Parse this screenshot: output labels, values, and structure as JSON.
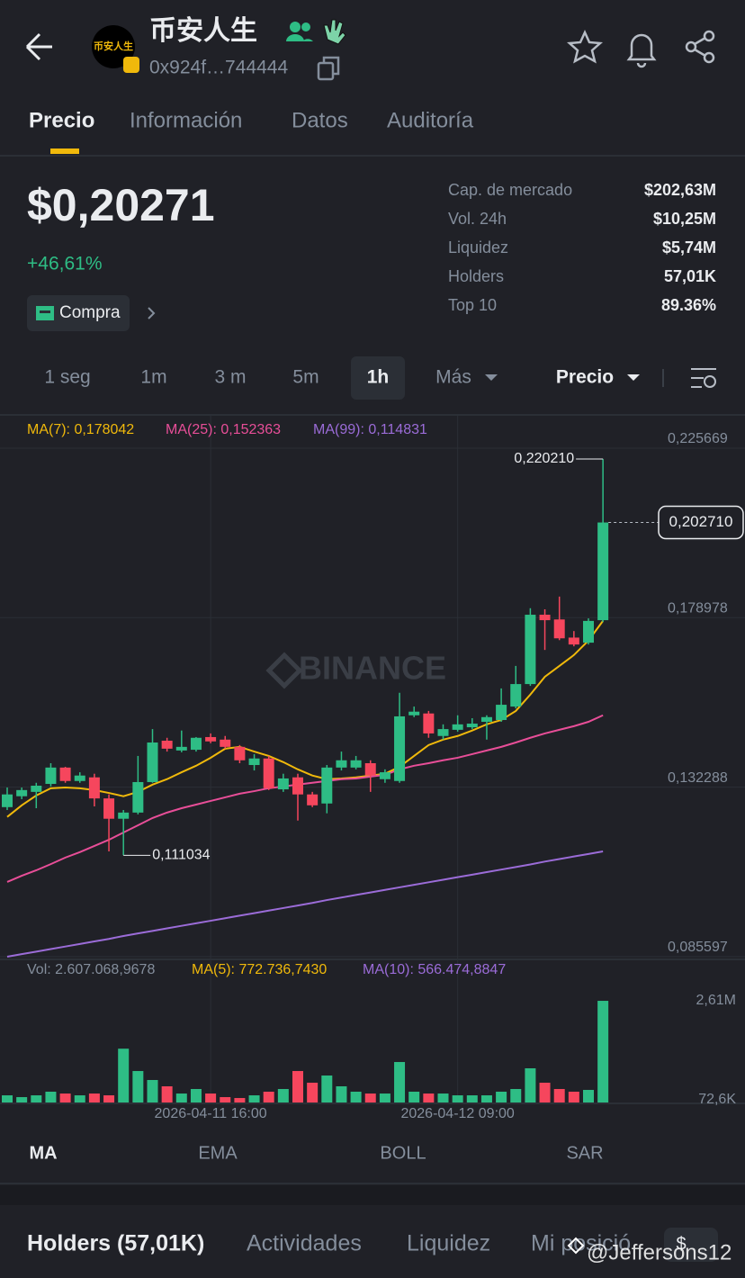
{
  "header": {
    "title": "币安人生",
    "avatar_text": "币安人生",
    "address": "0x924f…744444"
  },
  "tabs": [
    "Precio",
    "Información",
    "Datos",
    "Auditoría"
  ],
  "price": {
    "value": "$0,20271",
    "change": "+46,61%",
    "buy_label": "Compra"
  },
  "stats": [
    [
      "Cap. de mercado",
      "$202,63M"
    ],
    [
      "Vol. 24h",
      "$10,25M"
    ],
    [
      "Liquidez",
      "$5,74M"
    ],
    [
      "Holders",
      "57,01K"
    ],
    [
      "Top 10",
      "89.36%"
    ]
  ],
  "intervals": [
    "1 seg",
    "1m",
    "3 m",
    "5m",
    "1h",
    "Más"
  ],
  "price_selector": "Precio",
  "chart_data": {
    "type": "candlestick",
    "watermark": "BINANCE",
    "categories": [
      null,
      null,
      null,
      null,
      null,
      null,
      null,
      null,
      null,
      null,
      null,
      null,
      null,
      null,
      "2026-04-11 16:00",
      null,
      null,
      null,
      null,
      null,
      null,
      null,
      null,
      null,
      null,
      null,
      null,
      null,
      null,
      null,
      null,
      "2026-04-12 09:00",
      null,
      null,
      null,
      null,
      null,
      null,
      null,
      null,
      null,
      null
    ],
    "open": [
      0.1243,
      0.1273,
      0.1285,
      0.1307,
      0.1352,
      0.1315,
      0.1325,
      0.1267,
      0.1211,
      0.1228,
      0.1312,
      0.1426,
      0.1399,
      0.1401,
      0.1436,
      0.1429,
      0.1409,
      0.1359,
      0.1377,
      0.1292,
      0.1325,
      0.1278,
      0.1253,
      0.1352,
      0.1352,
      0.1364,
      0.132,
      0.1315,
      0.1496,
      0.1501,
      0.1439,
      0.1456,
      0.1463,
      0.1478,
      0.1483,
      0.152,
      0.1582,
      0.1773,
      0.176,
      0.171,
      0.1696,
      0.1758
    ],
    "high": [
      0.1297,
      0.1297,
      0.131,
      0.1364,
      0.1354,
      0.1339,
      0.1335,
      0.1278,
      0.1235,
      0.1384,
      0.1458,
      0.1434,
      0.1454,
      0.1436,
      0.1446,
      0.1439,
      0.1414,
      0.1389,
      0.1384,
      0.1335,
      0.1335,
      0.1285,
      0.1359,
      0.1396,
      0.1384,
      0.1372,
      0.1347,
      0.1558,
      0.152,
      0.1508,
      0.1471,
      0.1496,
      0.1488,
      0.1496,
      0.157,
      0.1632,
      0.1791,
      0.1788,
      0.1823,
      0.1728,
      0.1763,
      0.22021
    ],
    "low": [
      0.1235,
      0.1265,
      0.124,
      0.13,
      0.131,
      0.131,
      0.1245,
      0.1121,
      0.111034,
      0.1223,
      0.131,
      0.1396,
      0.1394,
      0.1396,
      0.1419,
      0.1404,
      0.1364,
      0.1344,
      0.129,
      0.1285,
      0.1206,
      0.1243,
      0.1226,
      0.1344,
      0.1347,
      0.1285,
      0.131,
      0.131,
      0.1491,
      0.1434,
      0.1429,
      0.1451,
      0.1458,
      0.1429,
      0.1478,
      0.1515,
      0.1577,
      0.1676,
      0.1703,
      0.1686,
      0.1691,
      0.1753
    ],
    "close": [
      0.1278,
      0.129,
      0.1302,
      0.1352,
      0.1315,
      0.133,
      0.1267,
      0.1211,
      0.1228,
      0.1312,
      0.1421,
      0.1404,
      0.1409,
      0.1434,
      0.1424,
      0.1409,
      0.1372,
      0.1377,
      0.1295,
      0.1322,
      0.1278,
      0.1248,
      0.1352,
      0.1372,
      0.1372,
      0.133,
      0.1339,
      0.1493,
      0.1506,
      0.1446,
      0.1458,
      0.1471,
      0.1473,
      0.1491,
      0.1525,
      0.1582,
      0.1773,
      0.1758,
      0.1708,
      0.1691,
      0.1756,
      0.20271
    ],
    "up_color": "#2ebd85",
    "down_color": "#f6465d",
    "ylim": [
      0.0826,
      0.2321
    ],
    "yticks": [
      {
        "value": 0.225669,
        "label": "0,225669"
      },
      {
        "value": 0.178978,
        "label": "0,178978"
      },
      {
        "value": 0.132288,
        "label": "0,132288"
      },
      {
        "value": 0.085597,
        "label": "0,085597"
      }
    ],
    "grid": true,
    "indicators": [
      {
        "name": "MA(7): 0,178042",
        "color": "#f0b90b",
        "values": [
          0.1216,
          0.1248,
          0.1275,
          0.1295,
          0.1297,
          0.1295,
          0.129,
          0.1282,
          0.1273,
          0.1285,
          0.1305,
          0.132,
          0.1339,
          0.1357,
          0.1379,
          0.1404,
          0.1409,
          0.1396,
          0.1384,
          0.1367,
          0.1347,
          0.133,
          0.132,
          0.1322,
          0.1325,
          0.133,
          0.1335,
          0.1354,
          0.1384,
          0.1414,
          0.1429,
          0.1439,
          0.1454,
          0.1471,
          0.1483,
          0.1508,
          0.1553,
          0.1602,
          0.1632,
          0.1662,
          0.1702,
          0.1756
        ]
      },
      {
        "name": "MA(25): 0,152363",
        "color": "#e84e98",
        "values": [
          0.1037,
          0.1054,
          0.1069,
          0.1086,
          0.1104,
          0.1119,
          0.1136,
          0.1153,
          0.1173,
          0.1193,
          0.1213,
          0.1228,
          0.124,
          0.125,
          0.126,
          0.127,
          0.128,
          0.1287,
          0.1295,
          0.13,
          0.1305,
          0.131,
          0.1315,
          0.132,
          0.1322,
          0.1327,
          0.1332,
          0.1347,
          0.1357,
          0.1364,
          0.1372,
          0.1379,
          0.1389,
          0.1399,
          0.1409,
          0.1421,
          0.1434,
          0.1446,
          0.1456,
          0.1466,
          0.1478,
          0.1496
        ]
      },
      {
        "name": "MA(99): 0,114831",
        "color": "#9b6cd8",
        "values": [
          0.0831,
          0.0838,
          0.0845,
          0.0852,
          0.0859,
          0.0866,
          0.0873,
          0.088,
          0.0888,
          0.0895,
          0.0902,
          0.0909,
          0.0916,
          0.0923,
          0.093,
          0.0937,
          0.0944,
          0.0951,
          0.0958,
          0.0965,
          0.0972,
          0.0979,
          0.0987,
          0.0994,
          0.1001,
          0.1008,
          0.1015,
          0.1022,
          0.1029,
          0.1036,
          0.1043,
          0.105,
          0.1057,
          0.1064,
          0.1071,
          0.1078,
          0.1085,
          0.1093,
          0.11,
          0.1107,
          0.1114,
          0.1121
        ]
      }
    ],
    "annotations": [
      {
        "value": 0.22021,
        "label": "0,220210"
      },
      {
        "value": 0.111034,
        "label": "0,111034"
      }
    ],
    "last_price": {
      "value": 0.20271,
      "label": "0,202710"
    },
    "volume": {
      "values": [
        184000,
        138000,
        184000,
        277000,
        230000,
        184000,
        230000,
        184000,
        1380000,
        807000,
        577000,
        415000,
        230000,
        346000,
        230000,
        138000,
        115000,
        184000,
        277000,
        346000,
        807000,
        507000,
        692000,
        415000,
        277000,
        230000,
        230000,
        1038000,
        277000,
        230000,
        230000,
        184000,
        184000,
        184000,
        277000,
        346000,
        877000,
        507000,
        346000,
        277000,
        323000,
        2607068.9678
      ],
      "ylim": [
        0,
        3000000
      ],
      "yticks": [
        {
          "value": 2610000,
          "label": "2,61M"
        },
        {
          "value": 72600,
          "label": "72,6K"
        }
      ],
      "legend": [
        {
          "label": "Vol: 2.607.068,9678",
          "color": "#848e9c"
        },
        {
          "label": "MA(5): 772.736,7430",
          "color": "#f0b90b"
        },
        {
          "label": "MA(10): 566.474,8847",
          "color": "#9b6cd8"
        }
      ]
    }
  },
  "indicator_tabs": [
    "MA",
    "EMA",
    "BOLL",
    "SAR"
  ],
  "bottom_tabs": [
    "Holders (57,01K)",
    "Actividades",
    "Liquidez",
    "Mi posició",
    "$"
  ],
  "watermark_user": "@Jeffersons12"
}
